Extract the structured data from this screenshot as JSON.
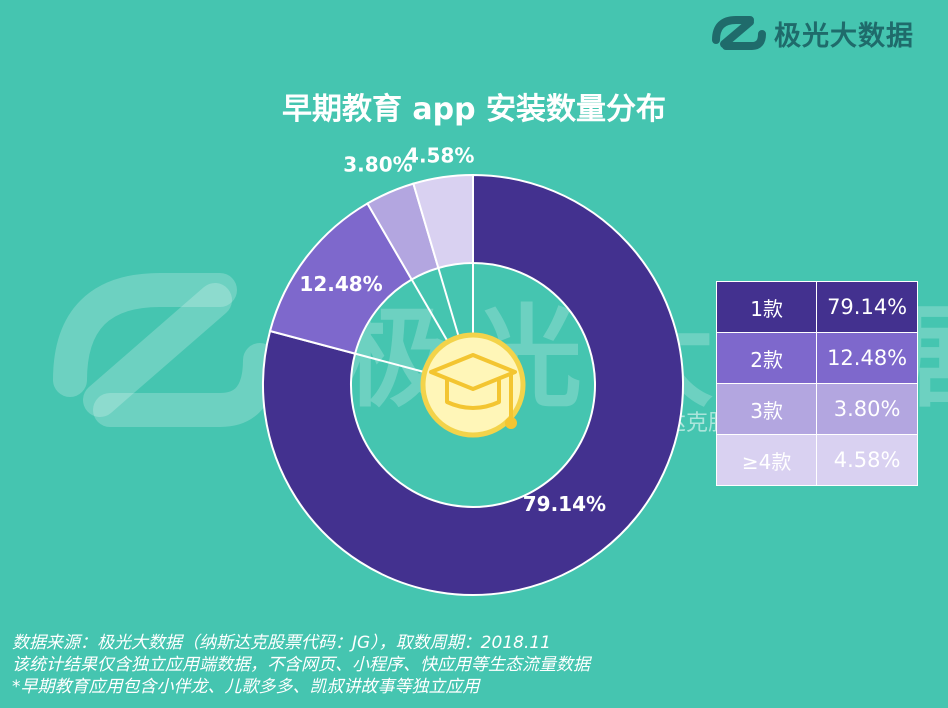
{
  "brand": {
    "name": "极光大数据"
  },
  "watermark": {
    "text": "极光大数据",
    "sub": "纳斯达克股票代码：JG"
  },
  "chart_data": {
    "type": "pie",
    "title": "早期教育 app 安装数量分布",
    "categories": [
      "1款",
      "2款",
      "3款",
      "≥4款"
    ],
    "values": [
      79.14,
      12.48,
      3.8,
      4.58
    ],
    "data_labels": [
      "79.14%",
      "12.48%",
      "3.80%",
      "4.58%"
    ],
    "colors": [
      "#43318f",
      "#7e68cc",
      "#b3a6e0",
      "#d9d1f1"
    ],
    "center_icon": "graduation-cap-icon"
  },
  "legend_rows": [
    {
      "label": "1款",
      "value": "79.14%",
      "color": "#43318f"
    },
    {
      "label": "2款",
      "value": "12.48%",
      "color": "#7e68cc"
    },
    {
      "label": "3款",
      "value": "3.80%",
      "color": "#b3a6e0"
    },
    {
      "label": "≥4款",
      "value": "4.58%",
      "color": "#d9d1f1"
    }
  ],
  "footer": {
    "line1": "数据来源：极光大数据（纳斯达克股票代码：JG），取数周期：2018.11",
    "line2": "该统计结果仅含独立应用端数据，不含网页、小程序、快应用等生态流量数据",
    "line3": "*早期教育应用包含小伴龙、儿歌多多、凯叔讲故事等独立应用"
  }
}
